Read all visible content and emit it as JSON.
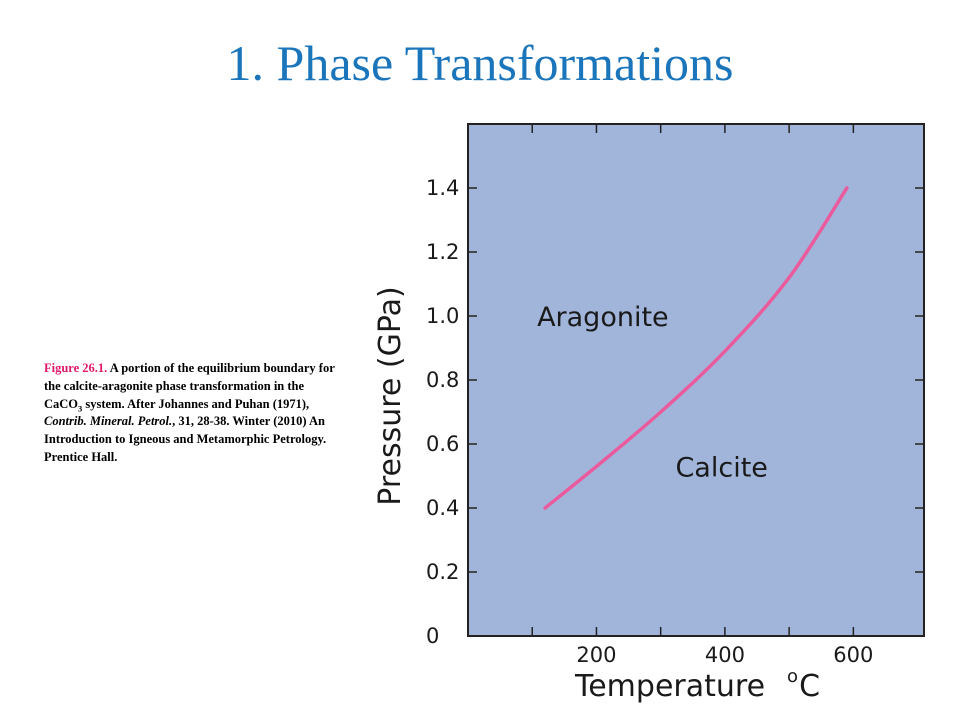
{
  "slide": {
    "title": "1.  Phase Transformations"
  },
  "caption": {
    "fig_label": "Figure 26.1.",
    "text1": " A portion of the equilibrium boundary for the calcite-aragonite phase transformation in the CaCO",
    "sub": "3",
    "text2": "  system. After Johannes and Puhan (1971), ",
    "italic": "Contrib. Mineral. Petrol.",
    "text3": ", 31, 28-38. Winter (2010) An Introduction to Igneous and Metamorphic Petrology. Prentice Hall."
  },
  "chart_data": {
    "type": "line",
    "series": [
      {
        "x": [
          120,
          200,
          300,
          400,
          500,
          590
        ],
        "y": [
          0.4,
          0.53,
          0.7,
          0.89,
          1.12,
          1.4
        ]
      }
    ],
    "xlim": [
      0,
      710
    ],
    "ylim": [
      0,
      1.6
    ],
    "x_ticks": [
      100,
      200,
      300,
      400,
      500,
      600
    ],
    "x_tick_labels": [
      "200",
      "400",
      "600"
    ],
    "x_tick_label_values": [
      200,
      400,
      600
    ],
    "y_ticks": [
      0.2,
      0.4,
      0.6,
      0.8,
      1.0,
      1.2,
      1.4
    ],
    "y_tick_labels": [
      "0",
      "0.2",
      "0.4",
      "0.6",
      "0.8",
      "1.0",
      "1.2",
      "1.4"
    ],
    "y_tick_label_values": [
      0,
      0.2,
      0.4,
      0.6,
      0.8,
      1.0,
      1.2,
      1.4
    ],
    "xlabel": "Temperature",
    "xlabel_unit_sup": "o",
    "xlabel_unit": "C",
    "ylabel": "Pressure (GPa)",
    "annotations": [
      {
        "text": "Aragonite",
        "x": 210,
        "y": 1.0
      },
      {
        "text": "Calcite",
        "x": 395,
        "y": 0.53
      }
    ],
    "grid": false,
    "colors": {
      "plot_background": "#a1b5db",
      "curve": "#ea5b9d",
      "axes": "#222222"
    }
  }
}
